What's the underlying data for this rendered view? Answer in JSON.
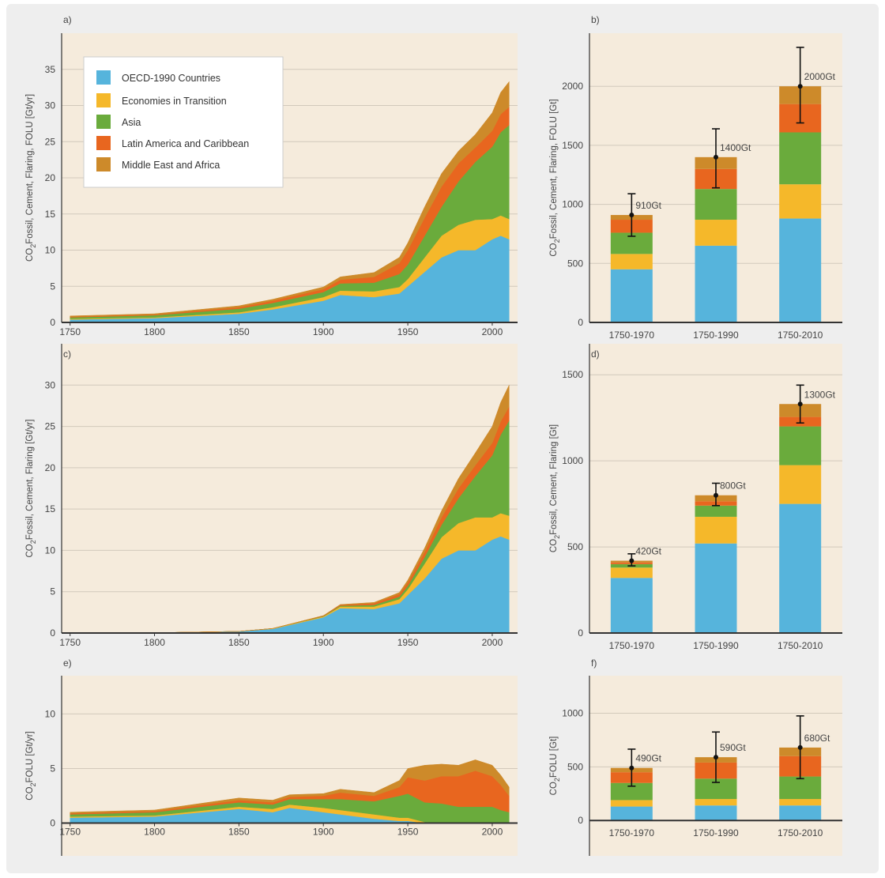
{
  "series_names": [
    "OECD-1990 Countries",
    "Economies in Transition",
    "Asia",
    "Latin America and Caribbean",
    "Middle East and Africa"
  ],
  "colors": {
    "oecd": "#56b4dc",
    "eit": "#f5b82a",
    "asia": "#6aab3c",
    "lac": "#e8661f",
    "mea": "#cd8a2a",
    "plot_bg": "#f5ebdc",
    "grid": "#d2c9bb",
    "axis": "#333333"
  },
  "chart_data": [
    {
      "id": "a",
      "panel_label": "a)",
      "type": "area",
      "stacked": true,
      "ylabel": {
        "pre": "CO",
        "sub": "2",
        "post": "Fossil, Cement, Flaring, FOLU [Gt/yr]"
      },
      "xlim": [
        1745,
        2015
      ],
      "ylim": [
        0,
        40
      ],
      "xticks": [
        1750,
        1800,
        1850,
        1900,
        1950,
        2000
      ],
      "yticks": [
        0,
        5,
        10,
        15,
        20,
        25,
        30,
        35
      ],
      "x": [
        1750,
        1800,
        1850,
        1870,
        1900,
        1910,
        1930,
        1945,
        1950,
        1960,
        1970,
        1980,
        1990,
        2000,
        2005,
        2010
      ],
      "series": [
        {
          "name": "OECD-1990 Countries",
          "values": [
            0.4,
            0.6,
            1.2,
            1.8,
            3.0,
            3.8,
            3.5,
            4.0,
            5.0,
            7.0,
            9.0,
            10.0,
            10.0,
            11.5,
            12.0,
            11.5
          ]
        },
        {
          "name": "Economies in Transition",
          "values": [
            0.1,
            0.1,
            0.2,
            0.3,
            0.5,
            0.6,
            0.8,
            0.9,
            1.0,
            2.0,
            3.0,
            3.5,
            4.2,
            2.8,
            2.8,
            2.8
          ]
        },
        {
          "name": "Asia",
          "values": [
            0.2,
            0.3,
            0.5,
            0.6,
            0.7,
            1.0,
            1.2,
            1.8,
            2.0,
            3.0,
            4.0,
            6.0,
            8.0,
            10.0,
            11.5,
            13.0
          ]
        },
        {
          "name": "Latin America and Caribbean",
          "values": [
            0.1,
            0.1,
            0.2,
            0.3,
            0.4,
            0.5,
            0.8,
            1.5,
            2.0,
            2.5,
            2.8,
            2.5,
            2.0,
            2.2,
            2.5,
            2.5
          ]
        },
        {
          "name": "Middle East and Africa",
          "values": [
            0.1,
            0.1,
            0.2,
            0.2,
            0.3,
            0.4,
            0.6,
            0.8,
            1.0,
            1.5,
            1.8,
            1.7,
            1.8,
            2.5,
            3.0,
            3.5
          ]
        }
      ],
      "legend": true,
      "legend_position": "top-left"
    },
    {
      "id": "b",
      "panel_label": "b)",
      "type": "bar",
      "stacked": true,
      "ylabel": {
        "pre": "CO",
        "sub": "2",
        "post": "Fossil, Cement, Flaring, FOLU [Gt]"
      },
      "ylim": [
        0,
        2450
      ],
      "yticks": [
        0,
        500,
        1000,
        1500,
        2000
      ],
      "categories": [
        "1750-1970",
        "1750-1990",
        "1750-2010"
      ],
      "series": [
        {
          "name": "OECD-1990 Countries",
          "values": [
            450,
            650,
            880
          ]
        },
        {
          "name": "Economies in Transition",
          "values": [
            130,
            220,
            290
          ]
        },
        {
          "name": "Asia",
          "values": [
            180,
            260,
            440
          ]
        },
        {
          "name": "Latin America and Caribbean",
          "values": [
            110,
            170,
            240
          ]
        },
        {
          "name": "Middle East and Africa",
          "values": [
            40,
            100,
            150
          ]
        }
      ],
      "totals": [
        910,
        1400,
        2000
      ],
      "total_labels": [
        "910Gt",
        "1400Gt",
        "2000Gt"
      ],
      "error_bars": [
        [
          730,
          1090
        ],
        [
          1140,
          1640
        ],
        [
          1690,
          2330
        ]
      ]
    },
    {
      "id": "c",
      "panel_label": "c)",
      "type": "area",
      "stacked": true,
      "ylabel": {
        "pre": "CO",
        "sub": "2",
        "post": "Fossil, Cement, Flaring [Gt/yr]"
      },
      "xlim": [
        1745,
        2015
      ],
      "ylim": [
        0,
        35
      ],
      "xticks": [
        1750,
        1800,
        1850,
        1900,
        1950,
        2000
      ],
      "yticks": [
        0,
        5,
        10,
        15,
        20,
        25,
        30
      ],
      "x": [
        1750,
        1800,
        1850,
        1870,
        1900,
        1910,
        1930,
        1945,
        1950,
        1960,
        1970,
        1980,
        1990,
        2000,
        2005,
        2010
      ],
      "series": [
        {
          "name": "OECD-1990 Countries",
          "values": [
            0.0,
            0.03,
            0.2,
            0.5,
            1.9,
            3.0,
            2.9,
            3.6,
            4.6,
            6.6,
            9.0,
            10.0,
            10.0,
            11.3,
            11.7,
            11.3
          ]
        },
        {
          "name": "Economies in Transition",
          "values": [
            0.0,
            0.0,
            0.0,
            0.05,
            0.1,
            0.2,
            0.3,
            0.5,
            0.7,
            1.8,
            2.6,
            3.3,
            4.0,
            2.7,
            2.8,
            2.9
          ]
        },
        {
          "name": "Asia",
          "values": [
            0.0,
            0.0,
            0.0,
            0.0,
            0.05,
            0.1,
            0.2,
            0.3,
            0.4,
            0.8,
            1.5,
            3.0,
            5.0,
            7.5,
            9.5,
            11.5
          ]
        },
        {
          "name": "Latin America and Caribbean",
          "values": [
            0.0,
            0.0,
            0.0,
            0.0,
            0.05,
            0.1,
            0.2,
            0.3,
            0.4,
            0.6,
            0.9,
            1.2,
            1.3,
            1.5,
            1.6,
            1.7
          ]
        },
        {
          "name": "Middle East and Africa",
          "values": [
            0.0,
            0.0,
            0.0,
            0.0,
            0.0,
            0.05,
            0.1,
            0.2,
            0.3,
            0.5,
            0.8,
            1.2,
            1.5,
            2.0,
            2.3,
            2.6
          ]
        }
      ],
      "legend": false
    },
    {
      "id": "d",
      "panel_label": "d)",
      "type": "bar",
      "stacked": true,
      "ylabel": {
        "pre": "CO",
        "sub": "2",
        "post": "Fossil, Cement, Flaring [Gt]"
      },
      "ylim": [
        0,
        1680
      ],
      "yticks": [
        0,
        500,
        1000,
        1500
      ],
      "categories": [
        "1750-1970",
        "1750-1990",
        "1750-2010"
      ],
      "series": [
        {
          "name": "OECD-1990 Countries",
          "values": [
            320,
            520,
            750
          ]
        },
        {
          "name": "Economies in Transition",
          "values": [
            60,
            155,
            225
          ]
        },
        {
          "name": "Asia",
          "values": [
            20,
            65,
            225
          ]
        },
        {
          "name": "Latin America and Caribbean",
          "values": [
            10,
            25,
            55
          ]
        },
        {
          "name": "Middle East and Africa",
          "values": [
            10,
            35,
            75
          ]
        }
      ],
      "totals": [
        420,
        800,
        1330
      ],
      "total_labels": [
        "420Gt",
        "800Gt",
        "1300Gt"
      ],
      "error_bars": [
        [
          390,
          460
        ],
        [
          740,
          870
        ],
        [
          1220,
          1440
        ]
      ]
    },
    {
      "id": "e",
      "panel_label": "e)",
      "type": "area",
      "stacked": true,
      "ylabel": {
        "pre": "CO",
        "sub": "2",
        "post": "FOLU [Gt/yr]"
      },
      "xlim": [
        1745,
        2015
      ],
      "ylim": [
        -3,
        13.5
      ],
      "xticks": [
        1750,
        1800,
        1850,
        1900,
        1950,
        2000
      ],
      "yticks": [
        0,
        5,
        10
      ],
      "x": [
        1750,
        1800,
        1850,
        1870,
        1880,
        1900,
        1910,
        1930,
        1945,
        1950,
        1960,
        1970,
        1980,
        1990,
        2000,
        2005,
        2010
      ],
      "series": [
        {
          "name": "OECD-1990 Countries",
          "values": [
            0.5,
            0.6,
            1.3,
            1.0,
            1.4,
            1.0,
            0.8,
            0.4,
            0.2,
            0.2,
            0.0,
            0.0,
            0.0,
            0.0,
            0.0,
            0.0,
            0.0
          ]
        },
        {
          "name": "Economies in Transition",
          "values": [
            0.1,
            0.1,
            0.2,
            0.3,
            0.3,
            0.4,
            0.4,
            0.4,
            0.3,
            0.3,
            0.1,
            0.0,
            0.0,
            0.0,
            0.0,
            0.0,
            0.0
          ]
        },
        {
          "name": "Asia",
          "values": [
            0.2,
            0.3,
            0.4,
            0.4,
            0.5,
            0.8,
            1.0,
            1.2,
            2.0,
            2.2,
            1.8,
            1.8,
            1.5,
            1.5,
            1.5,
            1.2,
            1.0
          ]
        },
        {
          "name": "Latin America and Caribbean",
          "values": [
            0.1,
            0.1,
            0.2,
            0.2,
            0.2,
            0.3,
            0.6,
            0.5,
            0.8,
            1.5,
            2.0,
            2.5,
            2.8,
            3.3,
            2.8,
            2.3,
            1.5
          ]
        },
        {
          "name": "Middle East and Africa",
          "values": [
            0.1,
            0.1,
            0.2,
            0.2,
            0.2,
            0.2,
            0.3,
            0.3,
            0.6,
            0.8,
            1.4,
            1.1,
            1.0,
            1.0,
            1.0,
            0.9,
            0.8
          ]
        }
      ],
      "legend": false
    },
    {
      "id": "f",
      "panel_label": "f)",
      "type": "bar",
      "stacked": true,
      "ylabel": {
        "pre": "CO",
        "sub": "2",
        "post": "FOLU [Gt]"
      },
      "ylim": [
        -330,
        1350
      ],
      "yticks": [
        0,
        500,
        1000
      ],
      "categories": [
        "1750-1970",
        "1750-1990",
        "1750-2010"
      ],
      "series": [
        {
          "name": "OECD-1990 Countries",
          "values": [
            130,
            140,
            140
          ]
        },
        {
          "name": "Economies in Transition",
          "values": [
            60,
            60,
            60
          ]
        },
        {
          "name": "Asia",
          "values": [
            160,
            190,
            210
          ]
        },
        {
          "name": "Latin America and Caribbean",
          "values": [
            100,
            150,
            190
          ]
        },
        {
          "name": "Middle East and Africa",
          "values": [
            40,
            50,
            80
          ]
        }
      ],
      "totals": [
        490,
        590,
        680
      ],
      "total_labels": [
        "490Gt",
        "590Gt",
        "680Gt"
      ],
      "error_bars": [
        [
          320,
          665
        ],
        [
          355,
          825
        ],
        [
          390,
          975
        ]
      ]
    }
  ]
}
